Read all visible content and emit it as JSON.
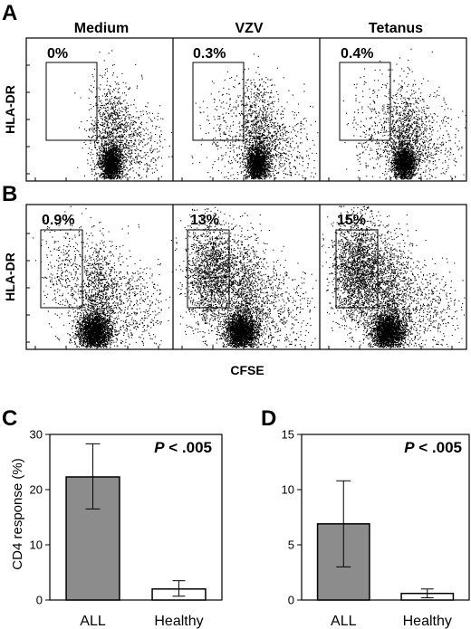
{
  "panels": {
    "a": "A",
    "b": "B",
    "c": "C",
    "d": "D"
  },
  "flow": {
    "columns": [
      "Medium",
      "VZV",
      "Tetanus"
    ],
    "y_axis": "HLA-DR",
    "x_axis": "CFSE",
    "row_a": [
      "0%",
      "0.3%",
      "0.4%"
    ],
    "row_b": [
      "0.9%",
      "13%",
      "15%"
    ]
  },
  "chart_data": [
    {
      "type": "bar",
      "panel": "C",
      "categories": [
        "ALL",
        "Healthy"
      ],
      "values": [
        22.3,
        2.0
      ],
      "error_low": [
        16.5,
        0.7
      ],
      "error_high": [
        28.3,
        3.5
      ],
      "ylabel": "CD4 response (%)",
      "ylim": [
        0,
        30
      ],
      "yticks": [
        0,
        10,
        20,
        30
      ],
      "annotation": "P < .005",
      "colors": [
        "#8c8c8c",
        "#ffffff"
      ]
    },
    {
      "type": "bar",
      "panel": "D",
      "categories": [
        "ALL",
        "Healthy"
      ],
      "values": [
        6.9,
        0.6
      ],
      "error_low": [
        3.0,
        0.2
      ],
      "error_high": [
        10.8,
        1.0
      ],
      "ylabel": "",
      "ylim": [
        0,
        15
      ],
      "yticks": [
        0,
        5,
        10,
        15
      ],
      "annotation": "P < .005",
      "colors": [
        "#8c8c8c",
        "#ffffff"
      ]
    }
  ]
}
